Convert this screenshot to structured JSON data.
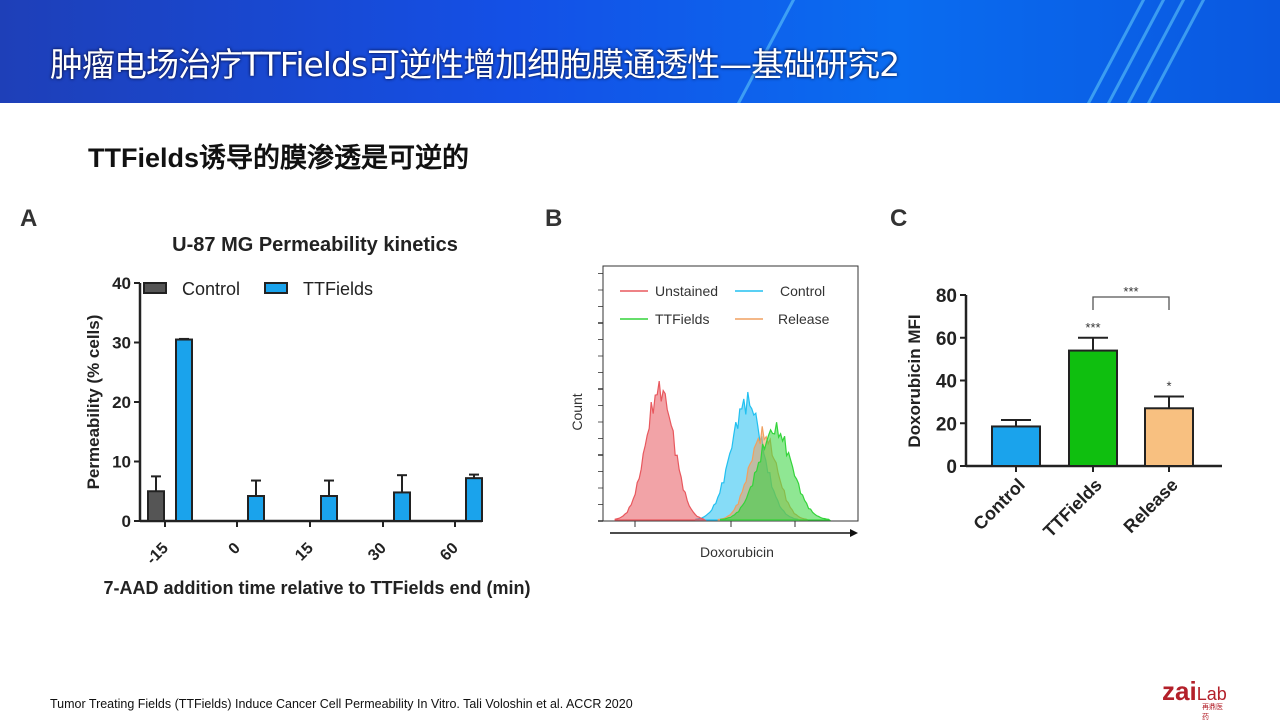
{
  "title": "肿瘤电场治疗TTFields可逆性增加细胞膜通透性—基础研究2",
  "subtitle": "TTFields诱导的膜渗透是可逆的",
  "panels": {
    "a": "A",
    "b": "B",
    "c": "C"
  },
  "footnote": "Tumor Treating Fields (TTFields) Induce Cancer Cell Permeability In Vitro. Tali Voloshin et al. ACCR 2020",
  "logo": {
    "text": "zai",
    "lab": "Lab",
    "cn": "再鼎医药"
  },
  "chart_data": [
    {
      "type": "bar",
      "title": "U-87 MG Permeability kinetics",
      "xlabel": "7-AAD addition time relative to TTFields end (min)",
      "ylabel": "Permeability (% cells)",
      "ylim": [
        0,
        40
      ],
      "yticks": [
        "0",
        "10",
        "20",
        "30",
        "40"
      ],
      "categories": [
        "-15",
        "0",
        "15",
        "30",
        "60"
      ],
      "legend": "top-left",
      "series": [
        {
          "name": "Control",
          "color": "#555555",
          "values": [
            5,
            null,
            null,
            null,
            null
          ],
          "error_upper": [
            7.5,
            null,
            null,
            null,
            null
          ]
        },
        {
          "name": "TTFields",
          "color": "#1aa3ec",
          "values": [
            30.5,
            4.2,
            4.2,
            4.8,
            7.2
          ],
          "error_upper": [
            30.6,
            6.8,
            6.8,
            7.7,
            7.8
          ]
        }
      ]
    },
    {
      "type": "histogram",
      "xlabel": "Doxorubicin",
      "ylabel": "Count",
      "legend": "top",
      "series": [
        {
          "name": "Unstained",
          "color": "#e8585e"
        },
        {
          "name": "Control",
          "color": "#22c0f0"
        },
        {
          "name": "TTFields",
          "color": "#33d43a"
        },
        {
          "name": "Release",
          "color": "#f0a060"
        }
      ]
    },
    {
      "type": "bar",
      "ylabel": "Doxorubicin MFI",
      "ylim": [
        0,
        80
      ],
      "yticks": [
        "0",
        "20",
        "40",
        "60",
        "80"
      ],
      "categories": [
        "Control",
        "TTFields",
        "Release"
      ],
      "values": [
        18.5,
        54,
        27
      ],
      "error_upper": [
        21.5,
        60,
        32.5
      ],
      "colors": [
        "#1aa3ec",
        "#0fbf0f",
        "#f8c080"
      ],
      "significance": [
        "",
        "***",
        "*"
      ],
      "bracket": {
        "from": "TTFields",
        "to": "Release",
        "label": "***"
      }
    }
  ]
}
